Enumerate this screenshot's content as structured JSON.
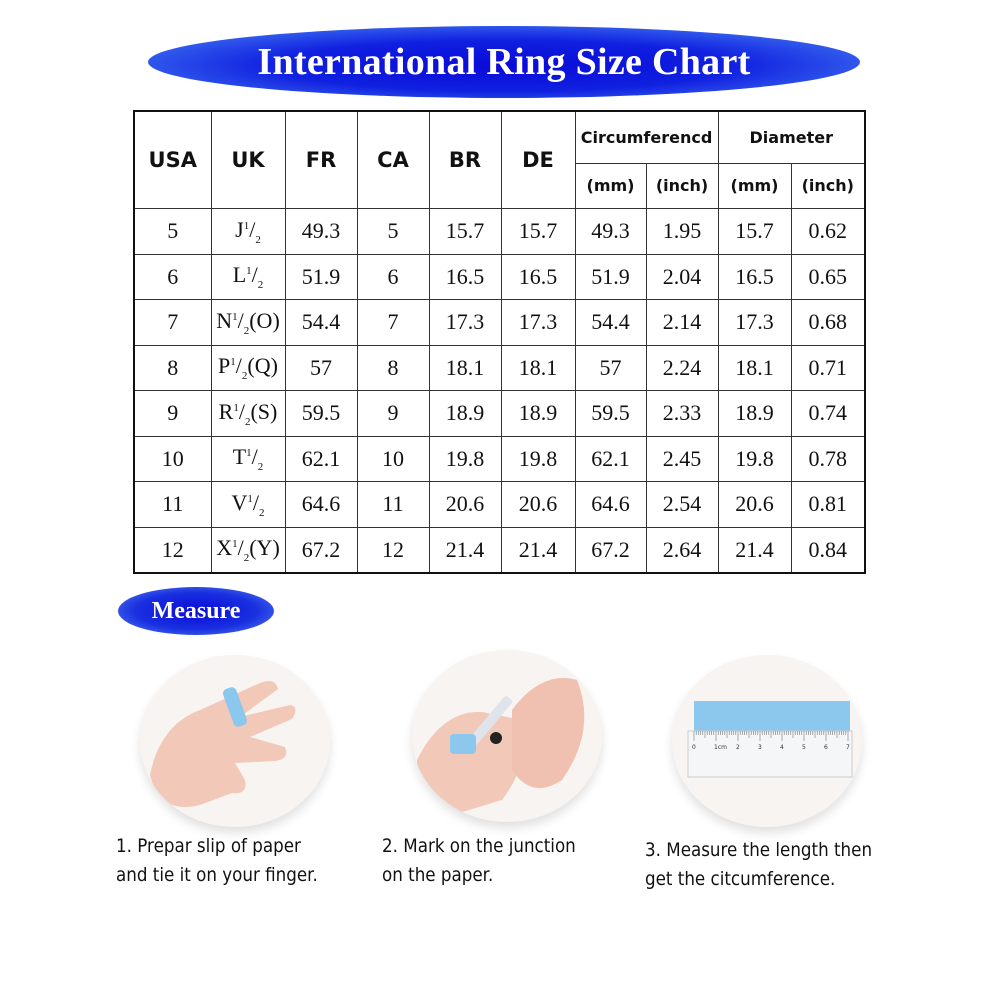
{
  "title": "International Ring Size Chart",
  "table": {
    "headers": [
      "USA",
      "UK",
      "FR",
      "CA",
      "BR",
      "DE"
    ],
    "group_headers": [
      "Circumferencd",
      "Diameter"
    ],
    "sub_headers": [
      "(mm)",
      "(inch)",
      "(mm)",
      "(inch)"
    ],
    "rows": [
      {
        "usa": "5",
        "uk": {
          "letter": "J",
          "num": "1",
          "den": "2",
          "alt": ""
        },
        "fr": "49.3",
        "ca": "5",
        "br": "15.7",
        "de": "15.7",
        "c_mm": "49.3",
        "c_in": "1.95",
        "d_mm": "15.7",
        "d_in": "0.62"
      },
      {
        "usa": "6",
        "uk": {
          "letter": "L",
          "num": "1",
          "den": "2",
          "alt": ""
        },
        "fr": "51.9",
        "ca": "6",
        "br": "16.5",
        "de": "16.5",
        "c_mm": "51.9",
        "c_in": "2.04",
        "d_mm": "16.5",
        "d_in": "0.65"
      },
      {
        "usa": "7",
        "uk": {
          "letter": "N",
          "num": "1",
          "den": "2",
          "alt": "(O)"
        },
        "fr": "54.4",
        "ca": "7",
        "br": "17.3",
        "de": "17.3",
        "c_mm": "54.4",
        "c_in": "2.14",
        "d_mm": "17.3",
        "d_in": "0.68"
      },
      {
        "usa": "8",
        "uk": {
          "letter": "P",
          "num": "1",
          "den": "2",
          "alt": "(Q)"
        },
        "fr": "57",
        "ca": "8",
        "br": "18.1",
        "de": "18.1",
        "c_mm": "57",
        "c_in": "2.24",
        "d_mm": "18.1",
        "d_in": "0.71"
      },
      {
        "usa": "9",
        "uk": {
          "letter": "R",
          "num": "1",
          "den": "2",
          "alt": "(S)"
        },
        "fr": "59.5",
        "ca": "9",
        "br": "18.9",
        "de": "18.9",
        "c_mm": "59.5",
        "c_in": "2.33",
        "d_mm": "18.9",
        "d_in": "0.74"
      },
      {
        "usa": "10",
        "uk": {
          "letter": "T",
          "num": "1",
          "den": "2",
          "alt": ""
        },
        "fr": "62.1",
        "ca": "10",
        "br": "19.8",
        "de": "19.8",
        "c_mm": "62.1",
        "c_in": "2.45",
        "d_mm": "19.8",
        "d_in": "0.78"
      },
      {
        "usa": "11",
        "uk": {
          "letter": "V",
          "num": "1",
          "den": "2",
          "alt": ""
        },
        "fr": "64.6",
        "ca": "11",
        "br": "20.6",
        "de": "20.6",
        "c_mm": "64.6",
        "c_in": "2.54",
        "d_mm": "20.6",
        "d_in": "0.81"
      },
      {
        "usa": "12",
        "uk": {
          "letter": "X",
          "num": "1",
          "den": "2",
          "alt": "(Y)"
        },
        "fr": "67.2",
        "ca": "12",
        "br": "21.4",
        "de": "21.4",
        "c_mm": "67.2",
        "c_in": "2.64",
        "d_mm": "21.4",
        "d_in": "0.84"
      }
    ]
  },
  "measure": {
    "label": "Measure",
    "steps": [
      {
        "line1": "1.  Prepar slip of paper",
        "line2": "and tie it on your finger."
      },
      {
        "line1": "2.  Mark on the junction",
        "line2": "on the paper."
      },
      {
        "line1": "3. Measure the length then",
        "line2": "get the citcumference."
      }
    ],
    "ruler_labels": [
      "0",
      "1cm",
      "2",
      "3",
      "4",
      "5",
      "6",
      "7"
    ]
  },
  "colors": {
    "banner": "#1010dd",
    "paper_strip": "#8cc8ee"
  }
}
